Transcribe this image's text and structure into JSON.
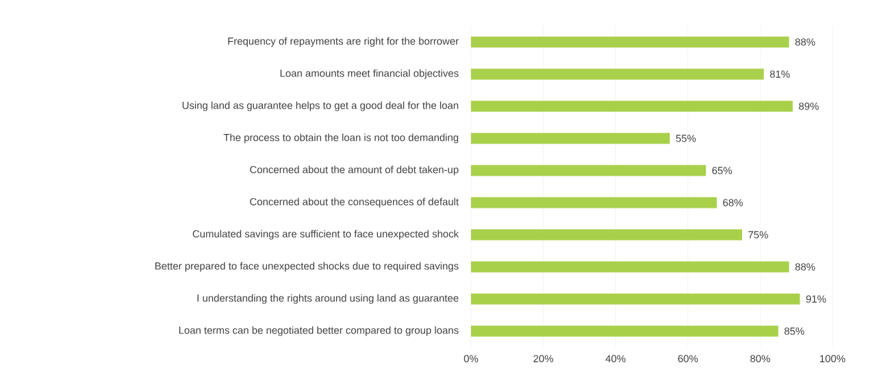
{
  "chart_data": {
    "type": "bar",
    "orientation": "horizontal",
    "categories": [
      "Frequency of repayments are right for the borrower",
      "Loan amounts meet financial objectives",
      "Using land as guarantee helps to get a good deal for the loan",
      "The process to obtain the loan is not too demanding",
      "Concerned about the amount of debt taken-up",
      "Concerned about the consequences of default",
      "Cumulated savings are sufficient to face unexpected shock",
      "Better prepared to face unexpected shocks due to required savings",
      "I understanding the rights around using land as guarantee",
      "Loan terms can be negotiated better compared to group loans"
    ],
    "values": [
      88,
      81,
      89,
      55,
      65,
      68,
      75,
      88,
      91,
      85
    ],
    "value_labels": [
      "88%",
      "81%",
      "89%",
      "55%",
      "65%",
      "68%",
      "75%",
      "88%",
      "91%",
      "85%"
    ],
    "color": "#a9d04a",
    "xlim": [
      0,
      100
    ],
    "xticks": [
      {
        "value": 0,
        "label": "0%"
      },
      {
        "value": 20,
        "label": "20%"
      },
      {
        "value": 40,
        "label": "40%"
      },
      {
        "value": 60,
        "label": "60%"
      },
      {
        "value": 80,
        "label": "80%"
      },
      {
        "value": 100,
        "label": "100%"
      }
    ],
    "grid": "x"
  }
}
